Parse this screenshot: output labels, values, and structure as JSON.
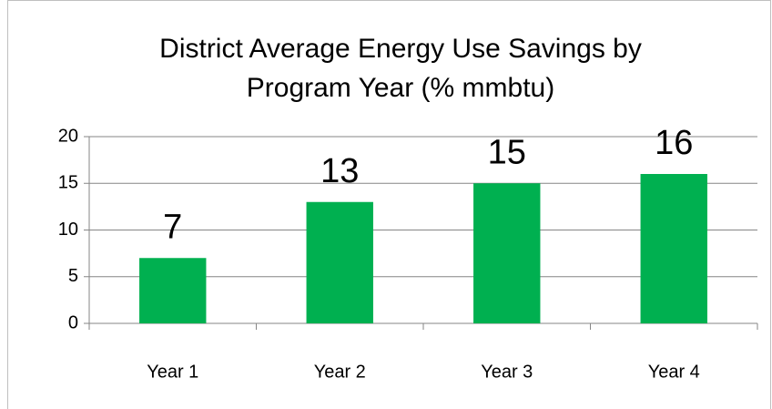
{
  "chart_data": {
    "type": "bar",
    "title": [
      "District Average Energy Use Savings by",
      "Program Year (% mmbtu)"
    ],
    "categories": [
      "Year 1",
      "Year 2",
      "Year 3",
      "Year 4"
    ],
    "values": [
      7,
      13,
      15,
      16
    ],
    "color": "#00b050",
    "ylim": [
      0,
      20
    ],
    "yticks": [
      0,
      5,
      10,
      15,
      20
    ],
    "grid": true
  }
}
